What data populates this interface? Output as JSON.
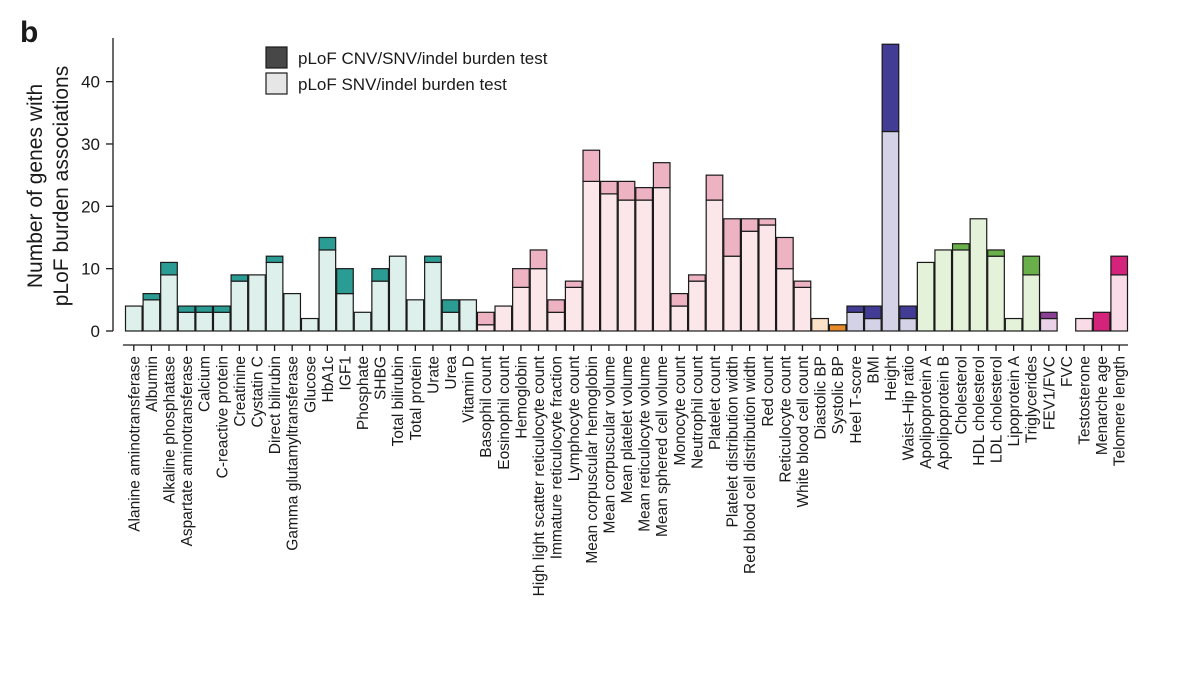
{
  "panel_label": "b",
  "chart_data": {
    "type": "bar",
    "stacked": true,
    "ylabel": [
      "Number of genes with",
      "pLoF burden associations"
    ],
    "xlabel": "",
    "ylim": [
      0,
      47
    ],
    "yticks": [
      0,
      10,
      20,
      30,
      40
    ],
    "legend": {
      "placement": "top-left",
      "entries": [
        {
          "label": "pLoF CNV/SNV/indel burden test",
          "color": "#474747"
        },
        {
          "label": "pLoF SNV/indel burden test",
          "color": "#e6e6e6"
        }
      ]
    },
    "series": [
      {
        "name": "pLoF SNV/indel burden test",
        "values": [
          4,
          5,
          9,
          3,
          3,
          3,
          8,
          9,
          11,
          6,
          2,
          13,
          6,
          3,
          8,
          12,
          5,
          11,
          3,
          5,
          1,
          4,
          7,
          10,
          3,
          7,
          24,
          22,
          21,
          21,
          23,
          4,
          8,
          21,
          12,
          16,
          17,
          10,
          7,
          2,
          0,
          3,
          2,
          32,
          2,
          11,
          13,
          13,
          18,
          12,
          2,
          9,
          2,
          0,
          2,
          0,
          9
        ]
      },
      {
        "name": "pLoF CNV/SNV/indel burden test",
        "values": [
          0,
          1,
          2,
          1,
          1,
          1,
          1,
          0,
          1,
          0,
          0,
          2,
          4,
          0,
          2,
          0,
          0,
          1,
          2,
          0,
          2,
          0,
          3,
          3,
          2,
          1,
          5,
          2,
          3,
          2,
          4,
          2,
          1,
          4,
          6,
          2,
          1,
          5,
          1,
          0,
          1,
          1,
          2,
          14,
          2,
          0,
          0,
          1,
          0,
          1,
          0,
          3,
          1,
          0,
          0,
          3,
          3
        ]
      }
    ],
    "categories": [
      "Alanine aminotransferase",
      "Albumin",
      "Alkaline phosphatase",
      "Aspartate aminotransferase",
      "Calcium",
      "C-reactive protein",
      "Creatinine",
      "Cystatin C",
      "Direct bilirubin",
      "Gamma glutamyltransferase",
      "Glucose",
      "HbA1c",
      "IGF1",
      "Phosphate",
      "SHBG",
      "Total bilirubin",
      "Total protein",
      "Urate",
      "Urea",
      "Vitamin D",
      "Basophil count",
      "Eosinophil count",
      "Hemoglobin",
      "High light scatter reticulocyte count",
      "Immature reticulocyte fraction",
      "Lymphocyte count",
      "Mean corpuscular hemoglobin",
      "Mean corpuscular volume",
      "Mean platelet volume",
      "Mean reticulocyte volume",
      "Mean sphered cell volume",
      "Monocyte count",
      "Neutrophil count",
      "Platelet count",
      "Platelet distribution width",
      "Red blood cell distribution width",
      "Red count",
      "Reticulocyte count",
      "White blood cell count",
      "Diastolic BP",
      "Systolic BP",
      "Heel T-score",
      "BMI",
      "Height",
      "Waist–Hip ratio",
      "Apolipoprotein A",
      "Apolipoprotein B",
      "Cholesterol",
      "HDL cholesterol",
      "LDL cholesterol",
      "Lipoprotein A",
      "Triglycerides",
      "FEV1/FVC",
      "FVC",
      "Testosterone",
      "Menarche age",
      "Telomere length"
    ],
    "colors_light": [
      "#def0ec",
      "#def0ec",
      "#def0ec",
      "#def0ec",
      "#def0ec",
      "#def0ec",
      "#def0ec",
      "#def0ec",
      "#def0ec",
      "#def0ec",
      "#def0ec",
      "#def0ec",
      "#def0ec",
      "#def0ec",
      "#def0ec",
      "#def0ec",
      "#def0ec",
      "#def0ec",
      "#def0ec",
      "#def0ec",
      "#fbe6ea",
      "#fbe6ea",
      "#fbe6ea",
      "#fbe6ea",
      "#fbe6ea",
      "#fbe6ea",
      "#fbe6ea",
      "#fbe6ea",
      "#fbe6ea",
      "#fbe6ea",
      "#fbe6ea",
      "#fbe6ea",
      "#fbe6ea",
      "#fbe6ea",
      "#fbe6ea",
      "#fbe6ea",
      "#fbe6ea",
      "#fbe6ea",
      "#fbe6ea",
      "#fbe2c8",
      "#fbe2c8",
      "#d4d2e6",
      "#d4d2e6",
      "#d4d2e6",
      "#d4d2e6",
      "#e3f2d9",
      "#e3f2d9",
      "#e3f2d9",
      "#e3f2d9",
      "#e3f2d9",
      "#e3f2d9",
      "#e3f2d9",
      "#ead2e8",
      "#ead2e8",
      "#f9dce8",
      "#f9dce8",
      "#f9dce8"
    ],
    "colors_dark": [
      "#2b9c94",
      "#2b9c94",
      "#2b9c94",
      "#2b9c94",
      "#2b9c94",
      "#2b9c94",
      "#2b9c94",
      "#2b9c94",
      "#2b9c94",
      "#2b9c94",
      "#2b9c94",
      "#2b9c94",
      "#2b9c94",
      "#2b9c94",
      "#2b9c94",
      "#2b9c94",
      "#2b9c94",
      "#2b9c94",
      "#2b9c94",
      "#2b9c94",
      "#eeb3c3",
      "#eeb3c3",
      "#eeb3c3",
      "#eeb3c3",
      "#eeb3c3",
      "#eeb3c3",
      "#eeb3c3",
      "#eeb3c3",
      "#eeb3c3",
      "#eeb3c3",
      "#eeb3c3",
      "#eeb3c3",
      "#eeb3c3",
      "#eeb3c3",
      "#eeb3c3",
      "#eeb3c3",
      "#eeb3c3",
      "#eeb3c3",
      "#eeb3c3",
      "#e88a2a",
      "#e88a2a",
      "#423c94",
      "#423c94",
      "#423c94",
      "#423c94",
      "#6ab04a",
      "#6ab04a",
      "#6ab04a",
      "#6ab04a",
      "#6ab04a",
      "#6ab04a",
      "#6ab04a",
      "#8c3f96",
      "#8c3f96",
      "#d4237a",
      "#d4237a",
      "#d4237a"
    ],
    "grid": false
  }
}
